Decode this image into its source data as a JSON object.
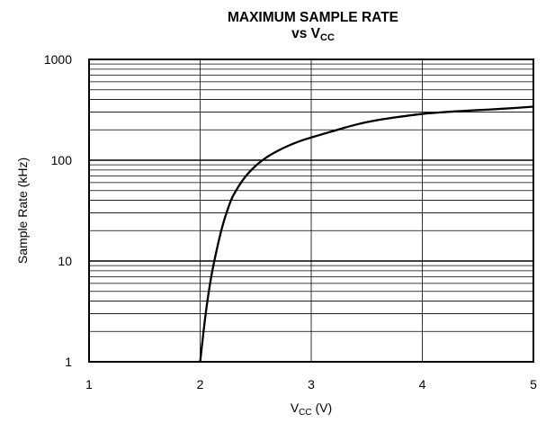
{
  "chart_data": {
    "type": "line",
    "title": "MAXIMUM SAMPLE RATE",
    "subtitle": {
      "prefix": "vs V",
      "sub": "CC"
    },
    "xlabel": {
      "prefix": "V",
      "sub": "CC",
      "suffix": " (V)"
    },
    "ylabel": "Sample Rate (kHz)",
    "x_ticks": [
      "1",
      "2",
      "3",
      "4",
      "5"
    ],
    "y_ticks": [
      "1",
      "10",
      "100",
      "1000"
    ],
    "xlim": [
      1,
      5
    ],
    "ylim": [
      1,
      1000
    ],
    "y_scale": "log",
    "grid": true,
    "series": [
      {
        "x": [
          2.0,
          2.05,
          2.1,
          2.15,
          2.2,
          2.25,
          2.3,
          2.4,
          2.5,
          2.6,
          2.7,
          2.8,
          2.9,
          3.0,
          3.2,
          3.4,
          3.6,
          3.8,
          4.0,
          4.2,
          4.4,
          4.6,
          4.8,
          5.0
        ],
        "values": [
          1.0,
          3.0,
          7.0,
          13,
          22,
          33,
          45,
          67,
          88,
          107,
          124,
          140,
          155,
          168,
          195,
          225,
          250,
          270,
          288,
          300,
          310,
          318,
          328,
          340
        ]
      }
    ]
  },
  "colors": {
    "line": "#000000",
    "grid": "#000000",
    "background": "#ffffff"
  }
}
